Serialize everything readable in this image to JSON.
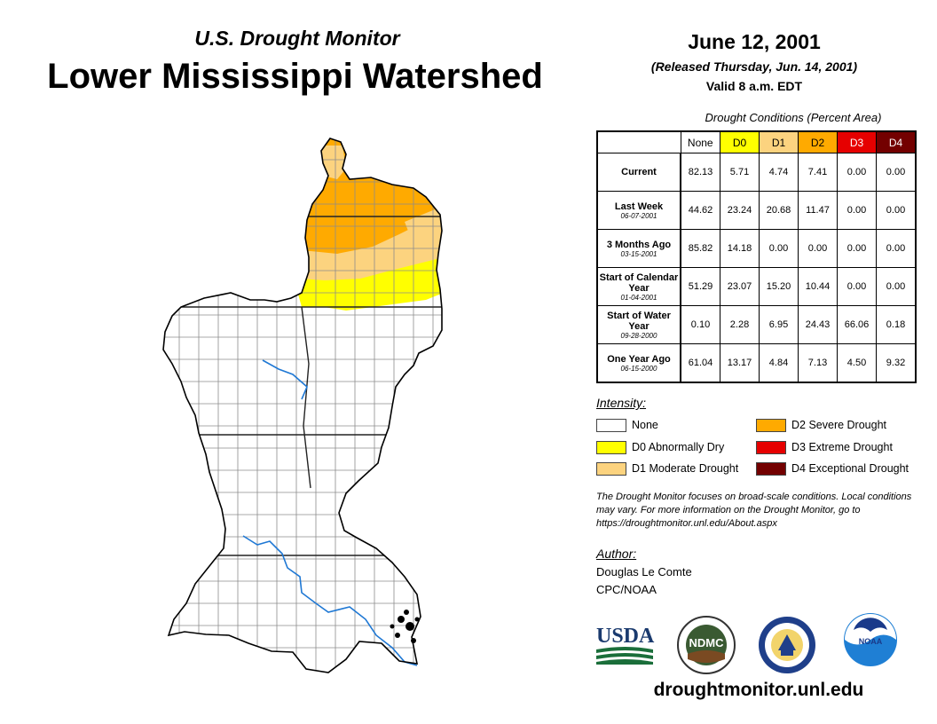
{
  "header": {
    "subtitle": "U.S. Drought Monitor",
    "region": "Lower Mississippi Watershed",
    "date": "June 12, 2001",
    "released": "(Released Thursday, Jun. 14, 2001)",
    "valid": "Valid 8 a.m. EDT"
  },
  "table": {
    "caption": "Drought Conditions (Percent Area)",
    "columns": [
      "None",
      "D0",
      "D1",
      "D2",
      "D3",
      "D4"
    ],
    "rows": [
      {
        "label": "Current",
        "date": "",
        "values": [
          "82.13",
          "5.71",
          "4.74",
          "7.41",
          "0.00",
          "0.00"
        ]
      },
      {
        "label": "Last Week",
        "date": "06-07-2001",
        "values": [
          "44.62",
          "23.24",
          "20.68",
          "11.47",
          "0.00",
          "0.00"
        ]
      },
      {
        "label": "3 Months Ago",
        "date": "03-15-2001",
        "values": [
          "85.82",
          "14.18",
          "0.00",
          "0.00",
          "0.00",
          "0.00"
        ]
      },
      {
        "label": "Start of Calendar Year",
        "date": "01-04-2001",
        "values": [
          "51.29",
          "23.07",
          "15.20",
          "10.44",
          "0.00",
          "0.00"
        ]
      },
      {
        "label": "Start of Water Year",
        "date": "09-28-2000",
        "values": [
          "0.10",
          "2.28",
          "6.95",
          "24.43",
          "66.06",
          "0.18"
        ]
      },
      {
        "label": "One Year Ago",
        "date": "06-15-2000",
        "values": [
          "61.04",
          "13.17",
          "4.84",
          "7.13",
          "4.50",
          "9.32"
        ]
      }
    ]
  },
  "legend": {
    "heading": "Intensity:",
    "items": [
      {
        "label": "None",
        "color": "#ffffff"
      },
      {
        "label": "D0 Abnormally Dry",
        "color": "#ffff00"
      },
      {
        "label": "D1 Moderate Drought",
        "color": "#fcd37f"
      },
      {
        "label": "D2 Severe Drought",
        "color": "#ffaa00"
      },
      {
        "label": "D3 Extreme Drought",
        "color": "#e60000"
      },
      {
        "label": "D4 Exceptional Drought",
        "color": "#730000"
      }
    ]
  },
  "note": "The Drought Monitor focuses on broad-scale conditions. Local conditions may vary. For more information on the Drought Monitor, go to https://droughtmonitor.unl.edu/About.aspx",
  "author": {
    "heading": "Author:",
    "name": "Douglas Le Comte",
    "org": "CPC/NOAA"
  },
  "logos": {
    "usda": "USDA",
    "ndmc": "NDMC",
    "noaa": "NOAA"
  },
  "url": "droughtmonitor.unl.edu"
}
